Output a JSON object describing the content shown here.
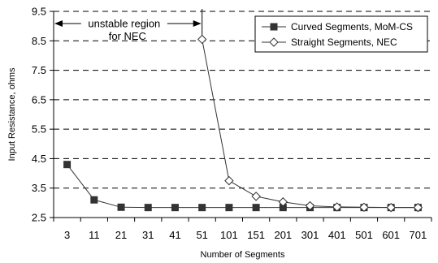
{
  "chart_data": {
    "type": "line",
    "categories": [
      "3",
      "11",
      "21",
      "31",
      "41",
      "51",
      "101",
      "151",
      "201",
      "301",
      "401",
      "501",
      "601",
      "701"
    ],
    "series": [
      {
        "name": "Curved Segments, MoM-CS",
        "marker": "square",
        "color": "#333333",
        "values": [
          4.3,
          3.1,
          2.85,
          2.84,
          2.84,
          2.84,
          2.84,
          2.84,
          2.84,
          2.84,
          2.84,
          2.84,
          2.84,
          2.84
        ]
      },
      {
        "name": "Straight Segments, NEC",
        "marker": "diamond-open",
        "color": "#333333",
        "start_index": 5,
        "values": [
          null,
          null,
          null,
          null,
          null,
          8.55,
          3.75,
          3.22,
          3.03,
          2.9,
          2.86,
          2.85,
          2.84,
          2.84
        ]
      }
    ],
    "xlabel": "Number of Segments",
    "ylabel": "Input Resistance, ohms",
    "ylim": [
      2.5,
      9.5
    ],
    "yticks": [
      "2.5",
      "3.5",
      "4.5",
      "5.5",
      "6.5",
      "7.5",
      "8.5",
      "9.5"
    ],
    "grid": "horizontal-dashed",
    "legend_position": "top-right",
    "annotation": {
      "line1": "unstable region",
      "line2": "for NEC",
      "span": [
        "3",
        "51"
      ]
    }
  }
}
